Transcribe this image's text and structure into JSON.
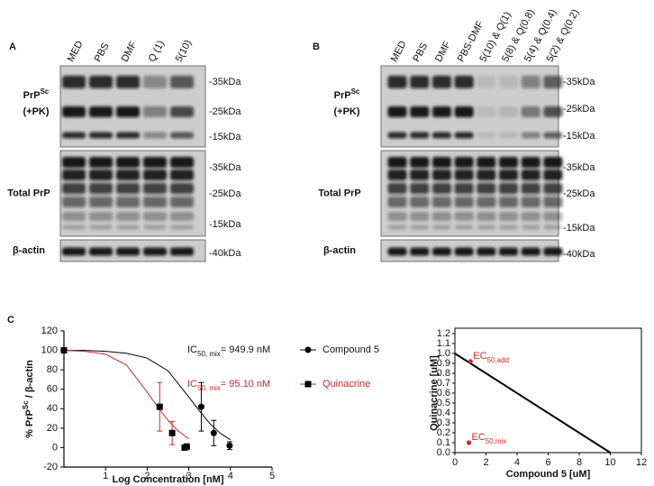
{
  "panels": [
    {
      "label": "A",
      "lanes": [
        "MED",
        "PBS",
        "DMF",
        "Q (1)",
        "5(10)"
      ],
      "blots": [
        {
          "row_label": "PrP",
          "row_label_sup": "Sc",
          "row_label_line2": "(+PK)",
          "markers": [
            "-35kDa",
            "-25kDa",
            "-15kDa"
          ]
        },
        {
          "row_label": "Total PrP",
          "markers": [
            "-35kDa",
            "-25kDa",
            "-15kDa"
          ]
        },
        {
          "row_label": "β-actin",
          "markers": [
            "-40kDa"
          ]
        }
      ]
    },
    {
      "label": "B",
      "lanes": [
        "MED",
        "PBS",
        "DMF",
        "PBS-DMF",
        "5(10) & Q(1)",
        "5(8) & Q(0.8)",
        "5(4) & Q(0.4)",
        "5(2) & Q(0.2)"
      ],
      "blots": [
        {
          "row_label": "PrP",
          "row_label_sup": "Sc",
          "row_label_line2": "(+PK)",
          "markers": [
            "-35kDa",
            "-25kDa",
            "-15kDa"
          ]
        },
        {
          "row_label": "Total PrP",
          "markers": [
            "-35kDa",
            "-25kDa",
            "-15kDa"
          ]
        },
        {
          "row_label": "β-actin",
          "markers": [
            "-40kDa"
          ]
        }
      ]
    }
  ],
  "panel_c_label": "C",
  "chart_data": [
    {
      "type": "dose-response",
      "xlabel": "Log Concentration [nM]",
      "ylabel": "% PrP",
      "ylabel_sup": "Sc",
      "ylabel_rest": " / β-actin",
      "xlim": [
        0,
        5
      ],
      "xticks": [
        1,
        2,
        3,
        4,
        5
      ],
      "ylim": [
        -20,
        120
      ],
      "yticks": [
        -20,
        0,
        20,
        40,
        60,
        80,
        100,
        120
      ],
      "series": [
        {
          "name": "Compound 5",
          "color": "#000000",
          "marker": "circle",
          "annotation": {
            "text": "IC",
            "sub": "50, mix",
            "rest": "= 949.9 nM"
          },
          "x": [
            0,
            3.3,
            3.6,
            3.98
          ],
          "values": [
            100,
            42,
            15,
            2
          ],
          "errors": [
            0,
            25,
            13,
            4
          ],
          "fit_x": [
            0,
            0.5,
            1,
            1.5,
            2,
            2.5,
            3,
            3.25,
            3.5,
            3.75,
            4
          ],
          "fit_values": [
            100,
            100,
            99,
            97,
            92,
            79,
            52,
            38,
            25,
            15,
            8
          ]
        },
        {
          "name": "Quinacrine",
          "color": "#c62828",
          "marker": "square",
          "annotation": {
            "text": "IC",
            "sub": "50, mix",
            "rest": "= 95.10 nM"
          },
          "x": [
            0,
            2.3,
            2.6,
            2.9,
            2.95
          ],
          "values": [
            100,
            42,
            15,
            0,
            1
          ],
          "errors": [
            0,
            25,
            12,
            2,
            3
          ],
          "fit_x": [
            0,
            0.5,
            1,
            1.5,
            2,
            2.25,
            2.5,
            2.75,
            3
          ],
          "fit_values": [
            100,
            99,
            96,
            85,
            57,
            42,
            28,
            17,
            9
          ]
        }
      ]
    },
    {
      "type": "isobologram",
      "xlabel": "Compound 5 [uM]",
      "ylabel": "Quinacrine [uM]",
      "xlim": [
        0,
        12
      ],
      "xticks": [
        0,
        2,
        4,
        6,
        8,
        10,
        12
      ],
      "ylim": [
        0,
        1.2
      ],
      "yticks": [
        {
          "value": 0,
          "label": "0.0"
        },
        0.1,
        0.2,
        0.3,
        0.4,
        0.5,
        0.6,
        0.7,
        0.8,
        0.9,
        {
          "value": 1,
          "label": "1.0"
        },
        1.1,
        1.2
      ],
      "line": {
        "color": "#000000",
        "x": [
          0,
          10
        ],
        "values": [
          1,
          0
        ]
      },
      "points": [
        {
          "text": "EC",
          "sub": "50,add",
          "x": 1,
          "value": 0.92,
          "color": "#d62728"
        },
        {
          "text": "EC",
          "sub": "50,mix",
          "x": 0.9,
          "value": 0.1,
          "color": "#d62728"
        }
      ]
    }
  ]
}
